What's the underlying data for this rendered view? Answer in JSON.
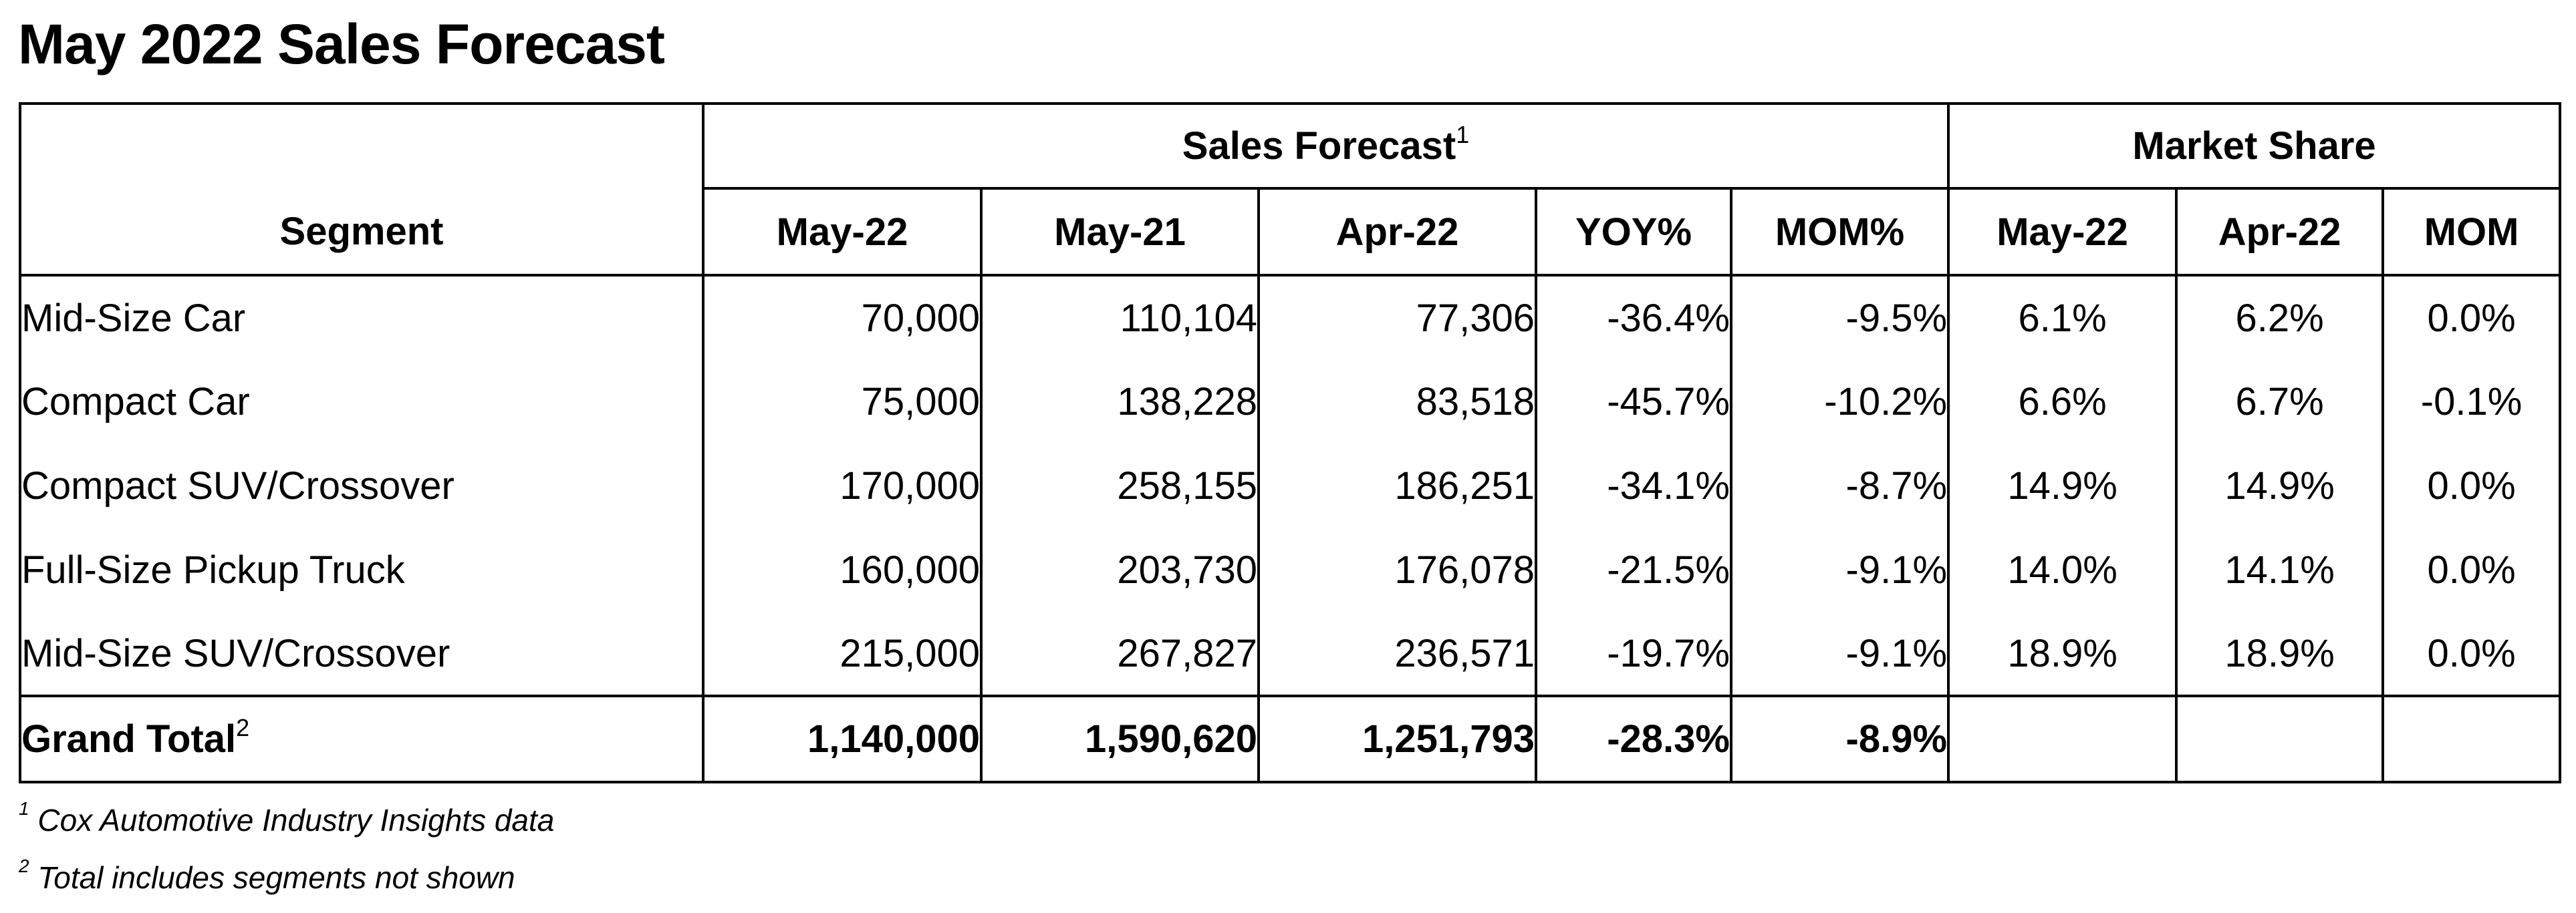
{
  "title": "May 2022 Sales Forecast",
  "header": {
    "group_sales": "Sales Forecast",
    "group_sales_sup": "1",
    "group_market": "Market Share",
    "columns": [
      "Segment",
      "May-22",
      "May-21",
      "Apr-22",
      "YOY%",
      "MOM%",
      "May-22",
      "Apr-22",
      "MOM"
    ]
  },
  "rows": [
    {
      "segment": "Mid-Size Car",
      "may22": "70,000",
      "may21": "110,104",
      "apr22": "77,306",
      "yoy": "-36.4%",
      "mom": "-9.5%",
      "ms_may22": "6.1%",
      "ms_apr22": "6.2%",
      "ms_mom": "0.0%"
    },
    {
      "segment": "Compact Car",
      "may22": "75,000",
      "may21": "138,228",
      "apr22": "83,518",
      "yoy": "-45.7%",
      "mom": "-10.2%",
      "ms_may22": "6.6%",
      "ms_apr22": "6.7%",
      "ms_mom": "-0.1%"
    },
    {
      "segment": "Compact SUV/Crossover",
      "may22": "170,000",
      "may21": "258,155",
      "apr22": "186,251",
      "yoy": "-34.1%",
      "mom": "-8.7%",
      "ms_may22": "14.9%",
      "ms_apr22": "14.9%",
      "ms_mom": "0.0%"
    },
    {
      "segment": "Full-Size Pickup Truck",
      "may22": "160,000",
      "may21": "203,730",
      "apr22": "176,078",
      "yoy": "-21.5%",
      "mom": "-9.1%",
      "ms_may22": "14.0%",
      "ms_apr22": "14.1%",
      "ms_mom": "0.0%"
    },
    {
      "segment": "Mid-Size SUV/Crossover",
      "may22": "215,000",
      "may21": "267,827",
      "apr22": "236,571",
      "yoy": "-19.7%",
      "mom": "-9.1%",
      "ms_may22": "18.9%",
      "ms_apr22": "18.9%",
      "ms_mom": "0.0%"
    }
  ],
  "total": {
    "segment": "Grand Total",
    "segment_sup": "2",
    "may22": "1,140,000",
    "may21": "1,590,620",
    "apr22": "1,251,793",
    "yoy": "-28.3%",
    "mom": "-8.9%"
  },
  "footnotes": [
    {
      "mark": "1",
      "text": "Cox Automotive Industry Insights data"
    },
    {
      "mark": "2",
      "text": "Total includes segments not shown"
    }
  ]
}
